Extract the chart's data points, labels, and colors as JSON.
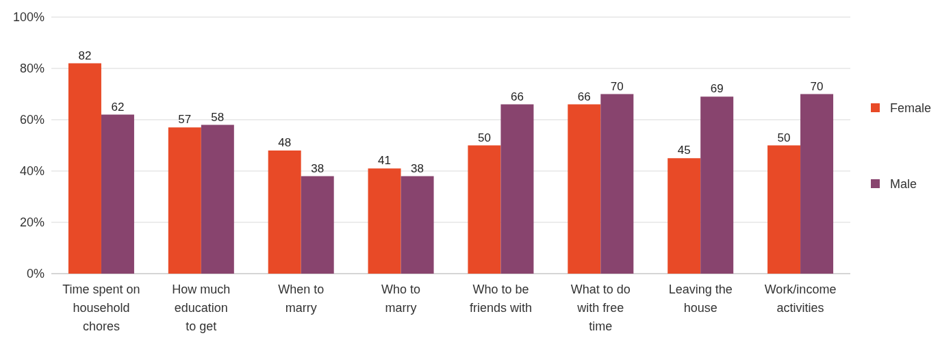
{
  "chart_data": {
    "type": "bar",
    "categories": [
      "Time spent on\nhousehold\nchores",
      "How much\neducation\nto get",
      "When to\nmarry",
      "Who to\nmarry",
      "Who to be\nfriends with",
      "What to do\nwith free\ntime",
      "Leaving the\nhouse",
      "Work/income\nactivities"
    ],
    "series": [
      {
        "name": "Female",
        "color": "#e84a27",
        "values": [
          82,
          57,
          48,
          41,
          50,
          66,
          45,
          50
        ]
      },
      {
        "name": "Male",
        "color": "#88446e",
        "values": [
          62,
          58,
          38,
          38,
          66,
          70,
          69,
          70
        ]
      }
    ],
    "ylim": [
      0,
      100
    ],
    "yticks": [
      {
        "value": 0,
        "label": "0%"
      },
      {
        "value": 20,
        "label": "20%"
      },
      {
        "value": 40,
        "label": "40%"
      },
      {
        "value": 60,
        "label": "60%"
      },
      {
        "value": 80,
        "label": "80%"
      },
      {
        "value": 100,
        "label": "100%"
      }
    ],
    "grid": "y",
    "legend": "right",
    "data_labels": true
  }
}
